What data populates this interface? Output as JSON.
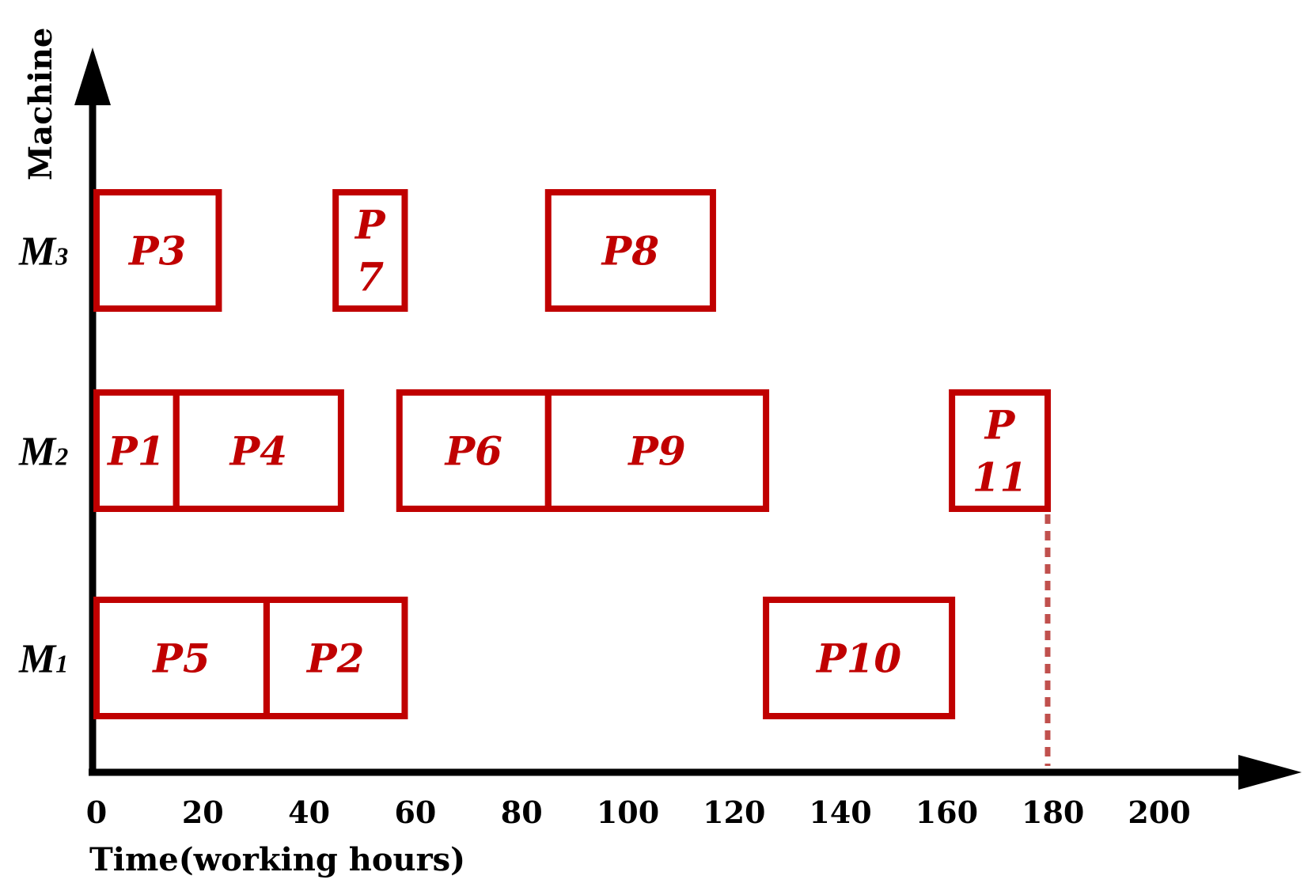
{
  "chart_data": {
    "type": "gantt",
    "xlabel": "Time(working hours)",
    "ylabel": "Machine",
    "xlim": [
      0,
      200
    ],
    "x_ticks": [
      "0",
      "20",
      "40",
      "60",
      "80",
      "100",
      "120",
      "140",
      "160",
      "180",
      "200"
    ],
    "machines": [
      {
        "id": "M1",
        "letter": "M",
        "sub": "1"
      },
      {
        "id": "M2",
        "letter": "M",
        "sub": "2"
      },
      {
        "id": "M3",
        "letter": "M",
        "sub": "3"
      }
    ],
    "tasks": [
      {
        "machine": "M3",
        "lines": [
          "P3"
        ],
        "start": 0,
        "end": 23
      },
      {
        "machine": "M3",
        "lines": [
          "P",
          "7"
        ],
        "start": 45,
        "end": 58
      },
      {
        "machine": "M3",
        "lines": [
          "P8"
        ],
        "start": 85,
        "end": 116
      },
      {
        "machine": "M2",
        "lines": [
          "P1"
        ],
        "start": 0,
        "end": 15
      },
      {
        "machine": "M2",
        "lines": [
          "P4"
        ],
        "start": 15,
        "end": 46
      },
      {
        "machine": "M2",
        "lines": [
          "P6"
        ],
        "start": 57,
        "end": 85
      },
      {
        "machine": "M2",
        "lines": [
          "P9"
        ],
        "start": 85,
        "end": 126
      },
      {
        "machine": "M2",
        "lines": [
          "P",
          "11"
        ],
        "start": 161,
        "end": 179
      },
      {
        "machine": "M1",
        "lines": [
          "P5"
        ],
        "start": 0,
        "end": 32
      },
      {
        "machine": "M1",
        "lines": [
          "P2"
        ],
        "start": 32,
        "end": 58
      },
      {
        "machine": "M1",
        "lines": [
          "P10"
        ],
        "start": 126,
        "end": 161
      }
    ],
    "makespan": 179,
    "colors": {
      "task": "#c00000",
      "makespan_line": "#c0504d",
      "axis": "#000000"
    }
  }
}
